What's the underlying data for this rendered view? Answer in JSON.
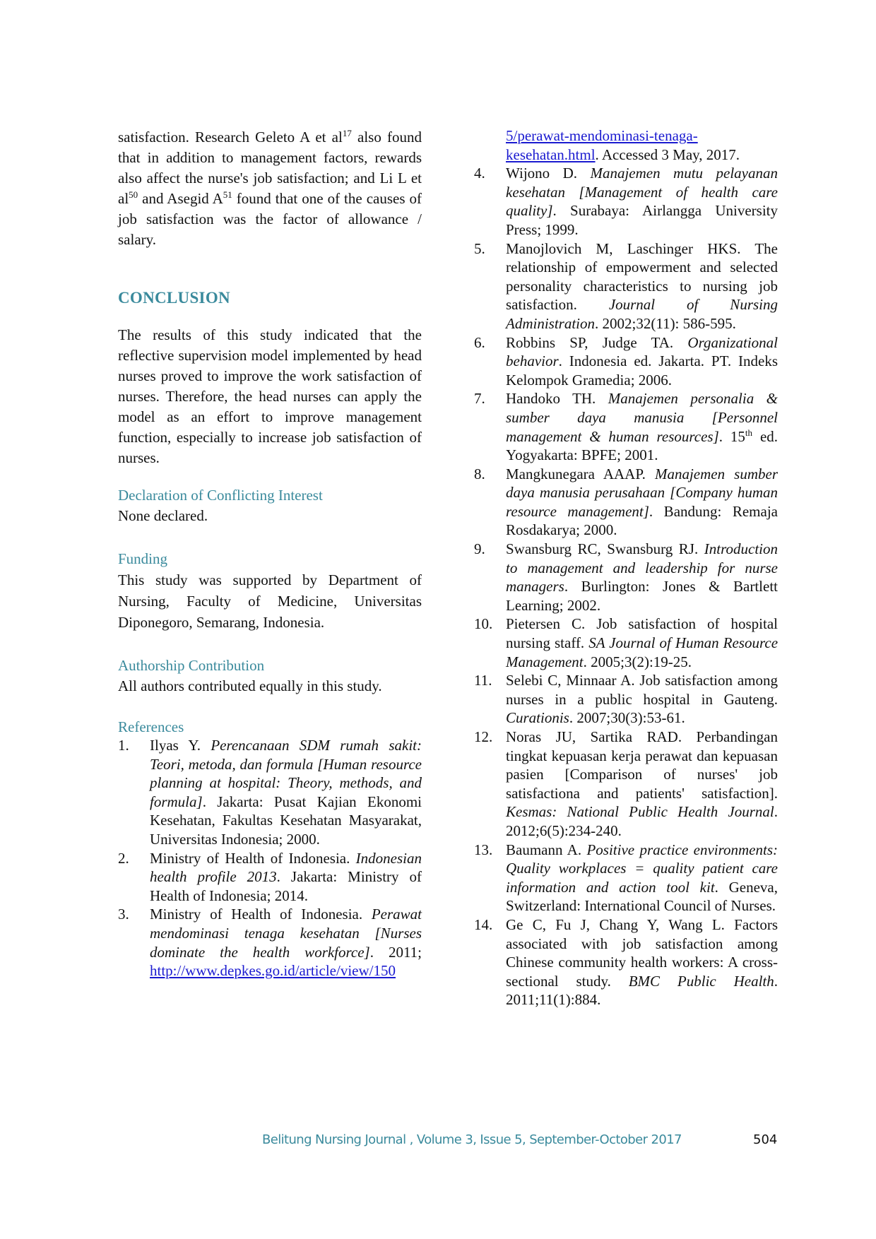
{
  "left": {
    "intro_paragraph": [
      {
        "t": "satisfaction. Research Geleto A et al"
      },
      {
        "t": "17",
        "sup": true
      },
      {
        "t": " also found that in addition to management factors, rewards also affect the nurse's job satisfaction; and Li L et al"
      },
      {
        "t": "50",
        "sup": true
      },
      {
        "t": " and Asegid A"
      },
      {
        "t": "51",
        "sup": true
      },
      {
        "t": " found that one of the causes of job satisfaction was the factor of allowance / salary."
      }
    ],
    "conclusion_heading": "CONCLUSION",
    "conclusion_text": "The results of this study indicated that the reflective supervision model implemented by head nurses proved to improve the work satisfaction of nurses. Therefore, the head nurses can apply the model as an effort to improve management function, especially to increase job satisfaction of nurses.",
    "declaration_heading": "Declaration of Conflicting Interest",
    "declaration_text": "None declared.",
    "funding_heading": "Funding",
    "funding_text": "This study was supported by Department of Nursing, Faculty of Medicine, Universitas Diponegoro, Semarang, Indonesia.",
    "authorship_heading": "Authorship Contribution",
    "authorship_text": "All authors contributed equally in this study.",
    "references_heading": "References"
  },
  "references_left": [
    {
      "num": "1.",
      "segs": [
        {
          "t": "Ilyas Y. "
        },
        {
          "t": "Perencanaan SDM rumah sakit: Teori, metoda, dan formula [Human resource planning at hospital: Theory, methods, and formula]",
          "i": true
        },
        {
          "t": ". Jakarta: Pusat Kajian Ekonomi Kesehatan, Fakultas Kesehatan Masyarakat, Universitas Indonesia; 2000."
        }
      ]
    },
    {
      "num": "2.",
      "segs": [
        {
          "t": "Ministry of Health of Indonesia. "
        },
        {
          "t": "Indonesian health profile 2013",
          "i": true
        },
        {
          "t": ". Jakarta: Ministry of Health of Indonesia; 2014."
        }
      ]
    },
    {
      "num": "3.",
      "segs": [
        {
          "t": "Ministry of Health of Indonesia. "
        },
        {
          "t": "Perawat mendominasi tenaga kesehatan [Nurses dominate the health workforce]",
          "i": true
        },
        {
          "t": ". 2011; "
        },
        {
          "t": "http://www.depkes.go.id/article/view/150",
          "link": true
        }
      ]
    }
  ],
  "reference_3_continuation": [
    {
      "t": "5/perawat-mendominasi-tenaga-kesehatan.html",
      "link": true
    },
    {
      "t": ". Accessed 3 May, 2017."
    }
  ],
  "references_right": [
    {
      "num": "4.",
      "segs": [
        {
          "t": "Wijono D. "
        },
        {
          "t": "Manajemen mutu pelayanan kesehatan [Management of health care quality]",
          "i": true
        },
        {
          "t": ". Surabaya: Airlangga University Press; 1999."
        }
      ]
    },
    {
      "num": "5.",
      "segs": [
        {
          "t": "Manojlovich M, Laschinger HKS. The relationship of empowerment and selected personality characteristics to nursing job satisfaction. "
        },
        {
          "t": "Journal of Nursing Administration",
          "i": true
        },
        {
          "t": ". 2002;32(11): 586-595."
        }
      ]
    },
    {
      "num": "6.",
      "segs": [
        {
          "t": "Robbins SP, Judge TA. "
        },
        {
          "t": "Organizational behavior",
          "i": true
        },
        {
          "t": ". Indonesia ed. Jakarta. PT. Indeks Kelompok Gramedia; 2006."
        }
      ]
    },
    {
      "num": "7.",
      "segs": [
        {
          "t": "Handoko TH. "
        },
        {
          "t": "Manajemen personalia & sumber daya manusia [Personnel management & human resources]",
          "i": true
        },
        {
          "t": ". 15"
        },
        {
          "t": "th",
          "sup": true
        },
        {
          "t": " ed. Yogyakarta: BPFE; 2001."
        }
      ]
    },
    {
      "num": "8.",
      "segs": [
        {
          "t": "Mangkunegara AAAP. "
        },
        {
          "t": "Manajemen sumber daya manusia perusahaan [Company human resource management]",
          "i": true
        },
        {
          "t": ". Bandung: Remaja Rosdakarya; 2000."
        }
      ]
    },
    {
      "num": "9.",
      "segs": [
        {
          "t": "Swansburg RC, Swansburg RJ. "
        },
        {
          "t": "Introduction to management and leadership for nurse managers",
          "i": true
        },
        {
          "t": ". Burlington: Jones & Bartlett Learning; 2002."
        }
      ]
    },
    {
      "num": "10.",
      "segs": [
        {
          "t": "Pietersen C. Job satisfaction of hospital nursing staff. "
        },
        {
          "t": "SA Journal of Human Resource Management",
          "i": true
        },
        {
          "t": ". 2005;3(2):19-25."
        }
      ]
    },
    {
      "num": "11.",
      "segs": [
        {
          "t": "Selebi C, Minnaar A. Job satisfaction among nurses in a public hospital in Gauteng. "
        },
        {
          "t": "Curationis",
          "i": true
        },
        {
          "t": ". 2007;30(3):53-61."
        }
      ]
    },
    {
      "num": "12.",
      "segs": [
        {
          "t": "Noras JU, Sartika RAD. Perbandingan tingkat kepuasan kerja perawat dan kepuasan pasien [Comparison of nurses' job satisfactiona and patients' satisfaction]. "
        },
        {
          "t": "Kesmas: National Public Health Journal",
          "i": true
        },
        {
          "t": ". 2012;6(5):234-240."
        }
      ]
    },
    {
      "num": "13.",
      "segs": [
        {
          "t": "Baumann A. "
        },
        {
          "t": "Positive practice environments: Quality workplaces = quality patient care information and action tool kit",
          "i": true
        },
        {
          "t": ". Geneva, Switzerland: International Council of Nurses."
        }
      ]
    },
    {
      "num": "14.",
      "segs": [
        {
          "t": "Ge C, Fu J, Chang Y, Wang L. Factors associated with job satisfaction among Chinese community health workers: A cross-sectional study. "
        },
        {
          "t": "BMC Public Health",
          "i": true
        },
        {
          "t": ". 2011;11(1):884."
        }
      ]
    }
  ],
  "footer": {
    "journal": "Belitung Nursing Journal , Volume 3, Issue 5, September-October 2017",
    "page_number": "504"
  },
  "colors": {
    "accent": "#3a8a9c",
    "link": "#1a1ad0",
    "text": "#111111"
  }
}
